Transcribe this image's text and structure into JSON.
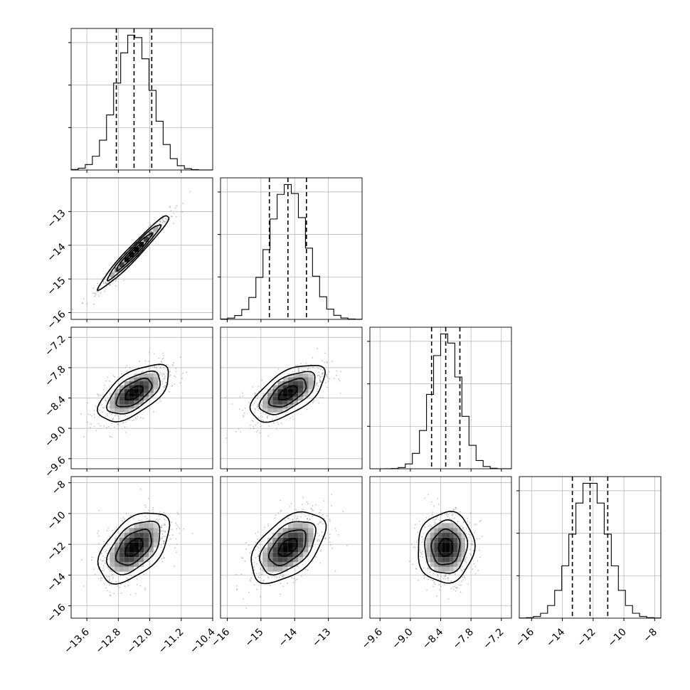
{
  "chart_data": {
    "type": "corner",
    "n_params": 4,
    "grid": true,
    "params": [
      {
        "mean": -12.4,
        "sd": 0.45,
        "range": [
          -14.0,
          -10.4
        ],
        "quantiles": [
          -12.85,
          -12.4,
          -11.95
        ],
        "ticks": [
          -13.6,
          -12.8,
          -12.0,
          -11.2,
          -10.4
        ],
        "tick_labels": [
          "−13.6",
          "−12.8",
          "−12.0",
          "−11.2",
          "−10.4"
        ]
      },
      {
        "mean": -14.2,
        "sd": 0.55,
        "range": [
          -16.2,
          -12.0
        ],
        "quantiles": [
          -14.75,
          -14.2,
          -13.65
        ],
        "ticks": [
          -16,
          -15,
          -14,
          -13
        ],
        "tick_labels": [
          "−16",
          "−15",
          "−14",
          "−13"
        ]
      },
      {
        "mean": -8.3,
        "sd": 0.28,
        "range": [
          -9.8,
          -7.0
        ],
        "quantiles": [
          -8.58,
          -8.3,
          -8.02
        ],
        "ticks": [
          -9.6,
          -9.0,
          -8.4,
          -7.8,
          -7.2
        ],
        "tick_labels": [
          "−9.6",
          "−9.0",
          "−8.4",
          "−7.8",
          "−7.2"
        ]
      },
      {
        "mean": -12.2,
        "sd": 1.15,
        "range": [
          -16.8,
          -7.6
        ],
        "quantiles": [
          -13.35,
          -12.2,
          -11.05
        ],
        "ticks": [
          -16,
          -14,
          -12,
          -10,
          -8
        ],
        "tick_labels": [
          "−16",
          "−14",
          "−12",
          "−10",
          "−8"
        ]
      }
    ],
    "correlations": [
      [
        1.0,
        0.97,
        0.6,
        0.5
      ],
      [
        0.97,
        1.0,
        0.6,
        0.5
      ],
      [
        0.6,
        0.6,
        1.0,
        0.05
      ],
      [
        0.5,
        0.5,
        0.05,
        1.0
      ]
    ],
    "hist_bins": 20,
    "contour_levels_sigma": [
      0.5,
      1.0,
      1.5,
      2.0
    ]
  }
}
